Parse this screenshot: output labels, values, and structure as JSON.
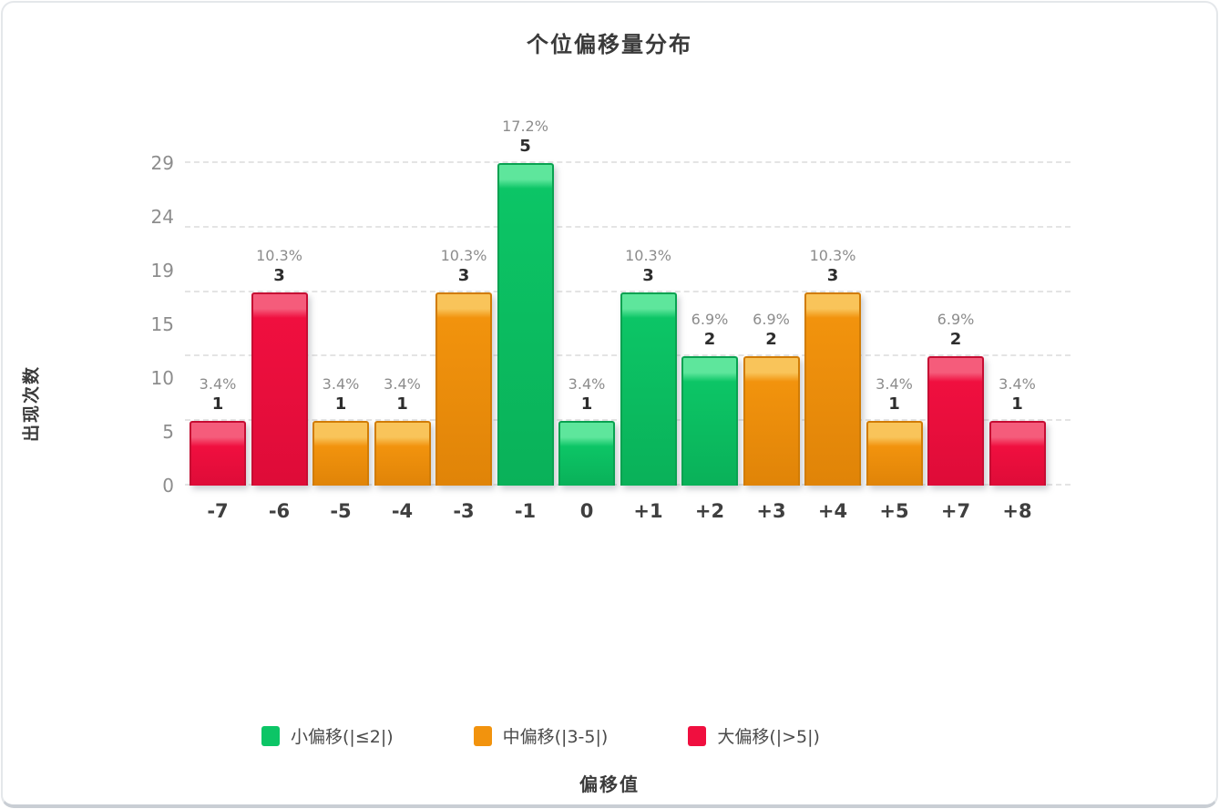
{
  "chart": {
    "title": "个位偏移量分布",
    "x_axis_title": "偏移值",
    "y_axis_title": "出现次数",
    "legend": [
      {
        "group": "small",
        "label": "小偏移(|≤2|)"
      },
      {
        "group": "mid",
        "label": "中偏移(|3-5|)"
      },
      {
        "group": "large",
        "label": "大偏移(|>5|)"
      }
    ]
  },
  "chart_data": {
    "type": "bar",
    "title": "个位偏移量分布",
    "xlabel": "偏移值",
    "ylabel": "出现次数",
    "categories": [
      "-7",
      "-6",
      "-5",
      "-4",
      "-3",
      "-1",
      "0",
      "+1",
      "+2",
      "+3",
      "+4",
      "+5",
      "+7",
      "+8"
    ],
    "values": [
      1,
      3,
      1,
      1,
      3,
      5,
      1,
      3,
      2,
      2,
      3,
      1,
      2,
      1
    ],
    "percent_labels": [
      "3.4%",
      "10.3%",
      "3.4%",
      "3.4%",
      "10.3%",
      "17.2%",
      "3.4%",
      "10.3%",
      "6.9%",
      "6.9%",
      "10.3%",
      "3.4%",
      "6.9%",
      "3.4%"
    ],
    "groups": [
      "large",
      "large",
      "mid",
      "mid",
      "mid",
      "small",
      "small",
      "small",
      "small",
      "mid",
      "mid",
      "mid",
      "large",
      "large"
    ],
    "group_colors": {
      "small": {
        "label": "小偏移(|≤2|)",
        "main": "#0cc566",
        "light": "#5ee69c",
        "dark": "#0ab159",
        "border": "#09a251"
      },
      "mid": {
        "label": "中偏移(|3-5|)",
        "main": "#f2930d",
        "light": "#f9c45a",
        "dark": "#e08408",
        "border": "#d17c05"
      },
      "large": {
        "label": "大偏移(|>5|)",
        "main": "#f00f3f",
        "light": "#f55c7b",
        "dark": "#de0c38",
        "border": "#c60d33"
      }
    },
    "yticks": [
      0,
      5,
      10,
      15,
      19,
      24,
      29
    ],
    "ylim": [
      0,
      29
    ],
    "value_scale": 5.8,
    "total_count": 29,
    "grid": true,
    "legend_position": "bottom"
  }
}
